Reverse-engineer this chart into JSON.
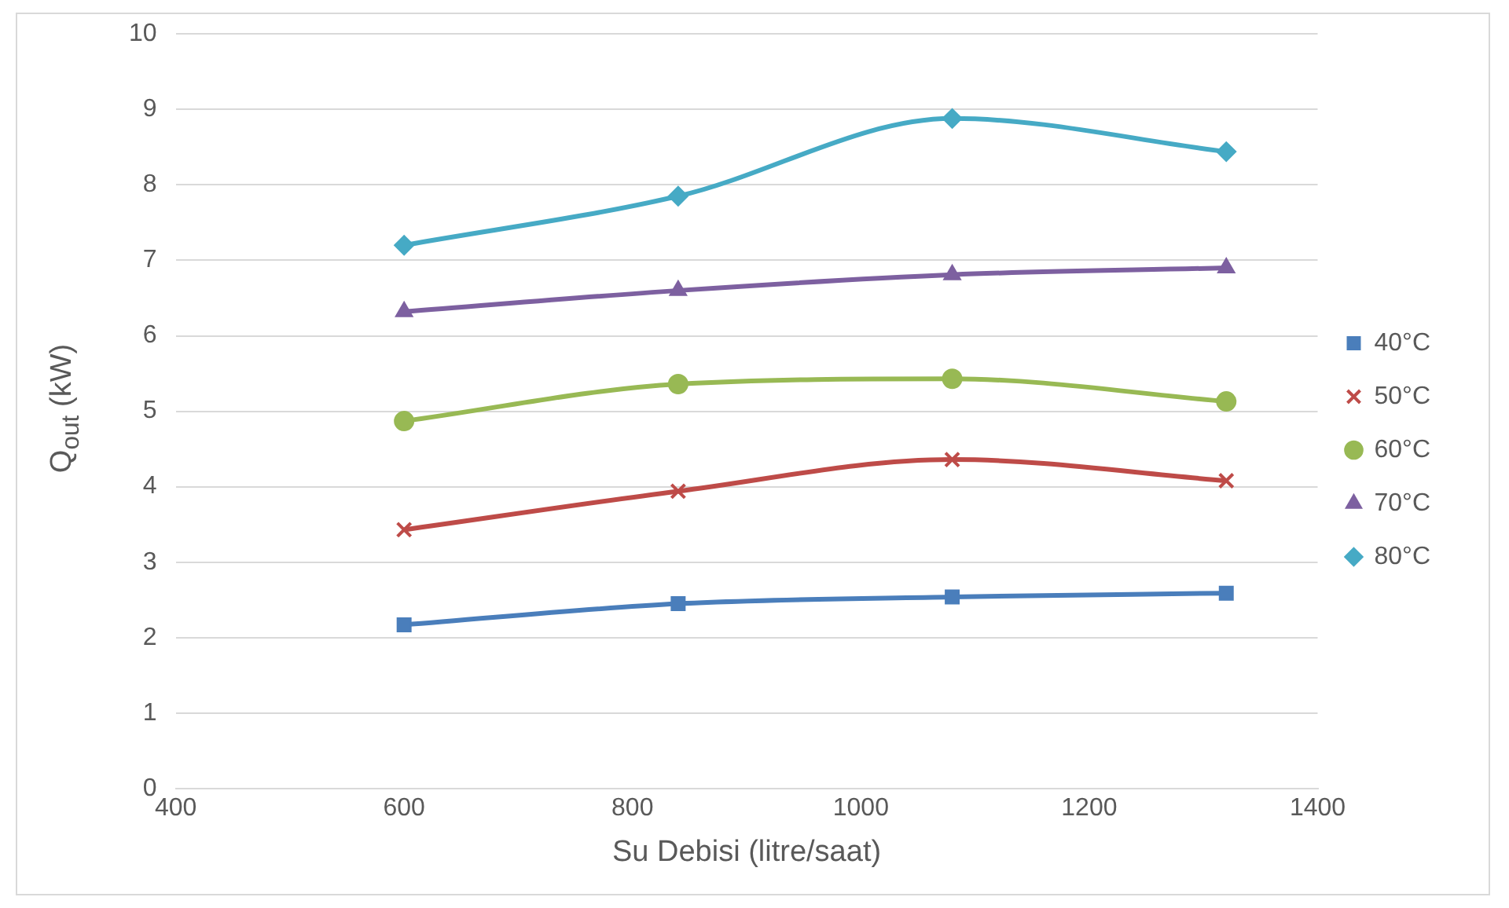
{
  "chart_data": {
    "type": "line",
    "xlabel": "Su Debisi (litre/saat)",
    "ylabel": "Q$_{out}$ (kW)",
    "x": [
      600,
      840,
      1080,
      1320
    ],
    "xlim": [
      400,
      1400
    ],
    "xticks": [
      400,
      600,
      800,
      1000,
      1200,
      1400
    ],
    "ylim": [
      0,
      10
    ],
    "yticks": [
      0,
      1,
      2,
      3,
      4,
      5,
      6,
      7,
      8,
      9,
      10
    ],
    "grid": "y",
    "legend": "right",
    "series": [
      {
        "name": "40°C",
        "color": "#4a7ebb",
        "marker": "square",
        "values": [
          2.17,
          2.45,
          2.54,
          2.59
        ]
      },
      {
        "name": "50°C",
        "color": "#be4b48",
        "marker": "cross",
        "values": [
          3.43,
          3.94,
          4.36,
          4.08
        ]
      },
      {
        "name": "60°C",
        "color": "#98b954",
        "marker": "circle",
        "values": [
          4.87,
          5.36,
          5.43,
          5.13
        ]
      },
      {
        "name": "70°C",
        "color": "#7d60a0",
        "marker": "triangle",
        "values": [
          6.32,
          6.6,
          6.81,
          6.9
        ]
      },
      {
        "name": "80°C",
        "color": "#46aac5",
        "marker": "diamond",
        "values": [
          7.2,
          7.85,
          8.88,
          8.44
        ]
      }
    ]
  }
}
